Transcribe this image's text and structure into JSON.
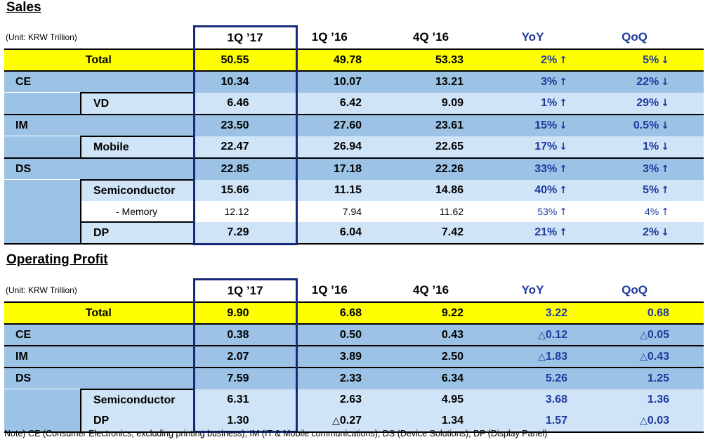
{
  "sales": {
    "title": "Sales",
    "unit": "(Unit: KRW Trillion)",
    "headers": [
      "1Q ’17",
      "1Q ’16",
      "4Q ’16",
      "YoY",
      "QoQ"
    ],
    "total": {
      "label": "Total",
      "q117": "50.55",
      "q116": "49.78",
      "q416": "53.33",
      "yoy": "2%",
      "qoq": "5%"
    },
    "ce": {
      "label": "CE",
      "q117": "10.34",
      "q116": "10.07",
      "q416": "13.21",
      "yoy": "3%",
      "qoq": "22%"
    },
    "vd": {
      "label": "VD",
      "q117": "6.46",
      "q116": "6.42",
      "q416": "9.09",
      "yoy": "1%",
      "qoq": "29%"
    },
    "im": {
      "label": "IM",
      "q117": "23.50",
      "q116": "27.60",
      "q416": "23.61",
      "yoy": "15%",
      "qoq": "0.5%"
    },
    "mobile": {
      "label": "Mobile",
      "q117": "22.47",
      "q116": "26.94",
      "q416": "22.65",
      "yoy": "17%",
      "qoq": "1%"
    },
    "ds": {
      "label": "DS",
      "q117": "22.85",
      "q116": "17.18",
      "q416": "22.26",
      "yoy": "33%",
      "qoq": "3%"
    },
    "semi": {
      "label": "Semiconductor",
      "q117": "15.66",
      "q116": "11.15",
      "q416": "14.86",
      "yoy": "40%",
      "qoq": "5%"
    },
    "memory": {
      "label": "- Memory",
      "q117": "12.12",
      "q116": "7.94",
      "q416": "11.62",
      "yoy": "53%",
      "qoq": "4%"
    },
    "dp": {
      "label": "DP",
      "q117": "7.29",
      "q116": "6.04",
      "q416": "7.42",
      "yoy": "21%",
      "qoq": "2%"
    }
  },
  "arrows": {
    "up": "↑",
    "down": "↓",
    "tri": "△"
  },
  "profit": {
    "title": "Operating Profit",
    "unit": "(Unit: KRW Trillion)",
    "headers": [
      "1Q ’17",
      "1Q ’16",
      "4Q ’16",
      "YoY",
      "QoQ"
    ],
    "total": {
      "label": "Total",
      "q117": "9.90",
      "q116": "6.68",
      "q416": "9.22",
      "yoy": "3.22",
      "qoq": "0.68"
    },
    "ce": {
      "label": "CE",
      "q117": "0.38",
      "q116": "0.50",
      "q416": "0.43",
      "yoy": "0.12",
      "qoq": "0.05"
    },
    "im": {
      "label": "IM",
      "q117": "2.07",
      "q116": "3.89",
      "q416": "2.50",
      "yoy": "1.83",
      "qoq": "0.43"
    },
    "ds": {
      "label": "DS",
      "q117": "7.59",
      "q116": "2.33",
      "q416": "6.34",
      "yoy": "5.26",
      "qoq": "1.25"
    },
    "semi": {
      "label": "Semiconductor",
      "q117": "6.31",
      "q116": "2.63",
      "q416": "4.95",
      "yoy": "3.68",
      "qoq": "1.36"
    },
    "dp": {
      "label": "DP",
      "q117": "1.30",
      "q116": "0.27",
      "q416": "1.34",
      "yoy": "1.57",
      "qoq": "0.03"
    }
  },
  "note": "Note) CE (Consumer Electronics, excluding printing business), IM (IT & Mobile communications),  DS (Device Solutions), DP (Display Panel)",
  "colors": {
    "total": "#ffff00",
    "segment": "#9cc3e6",
    "subsegment": "#cfe4f7",
    "change_text": "#1f3a9e",
    "highlight_border": "#1a2a7a"
  }
}
